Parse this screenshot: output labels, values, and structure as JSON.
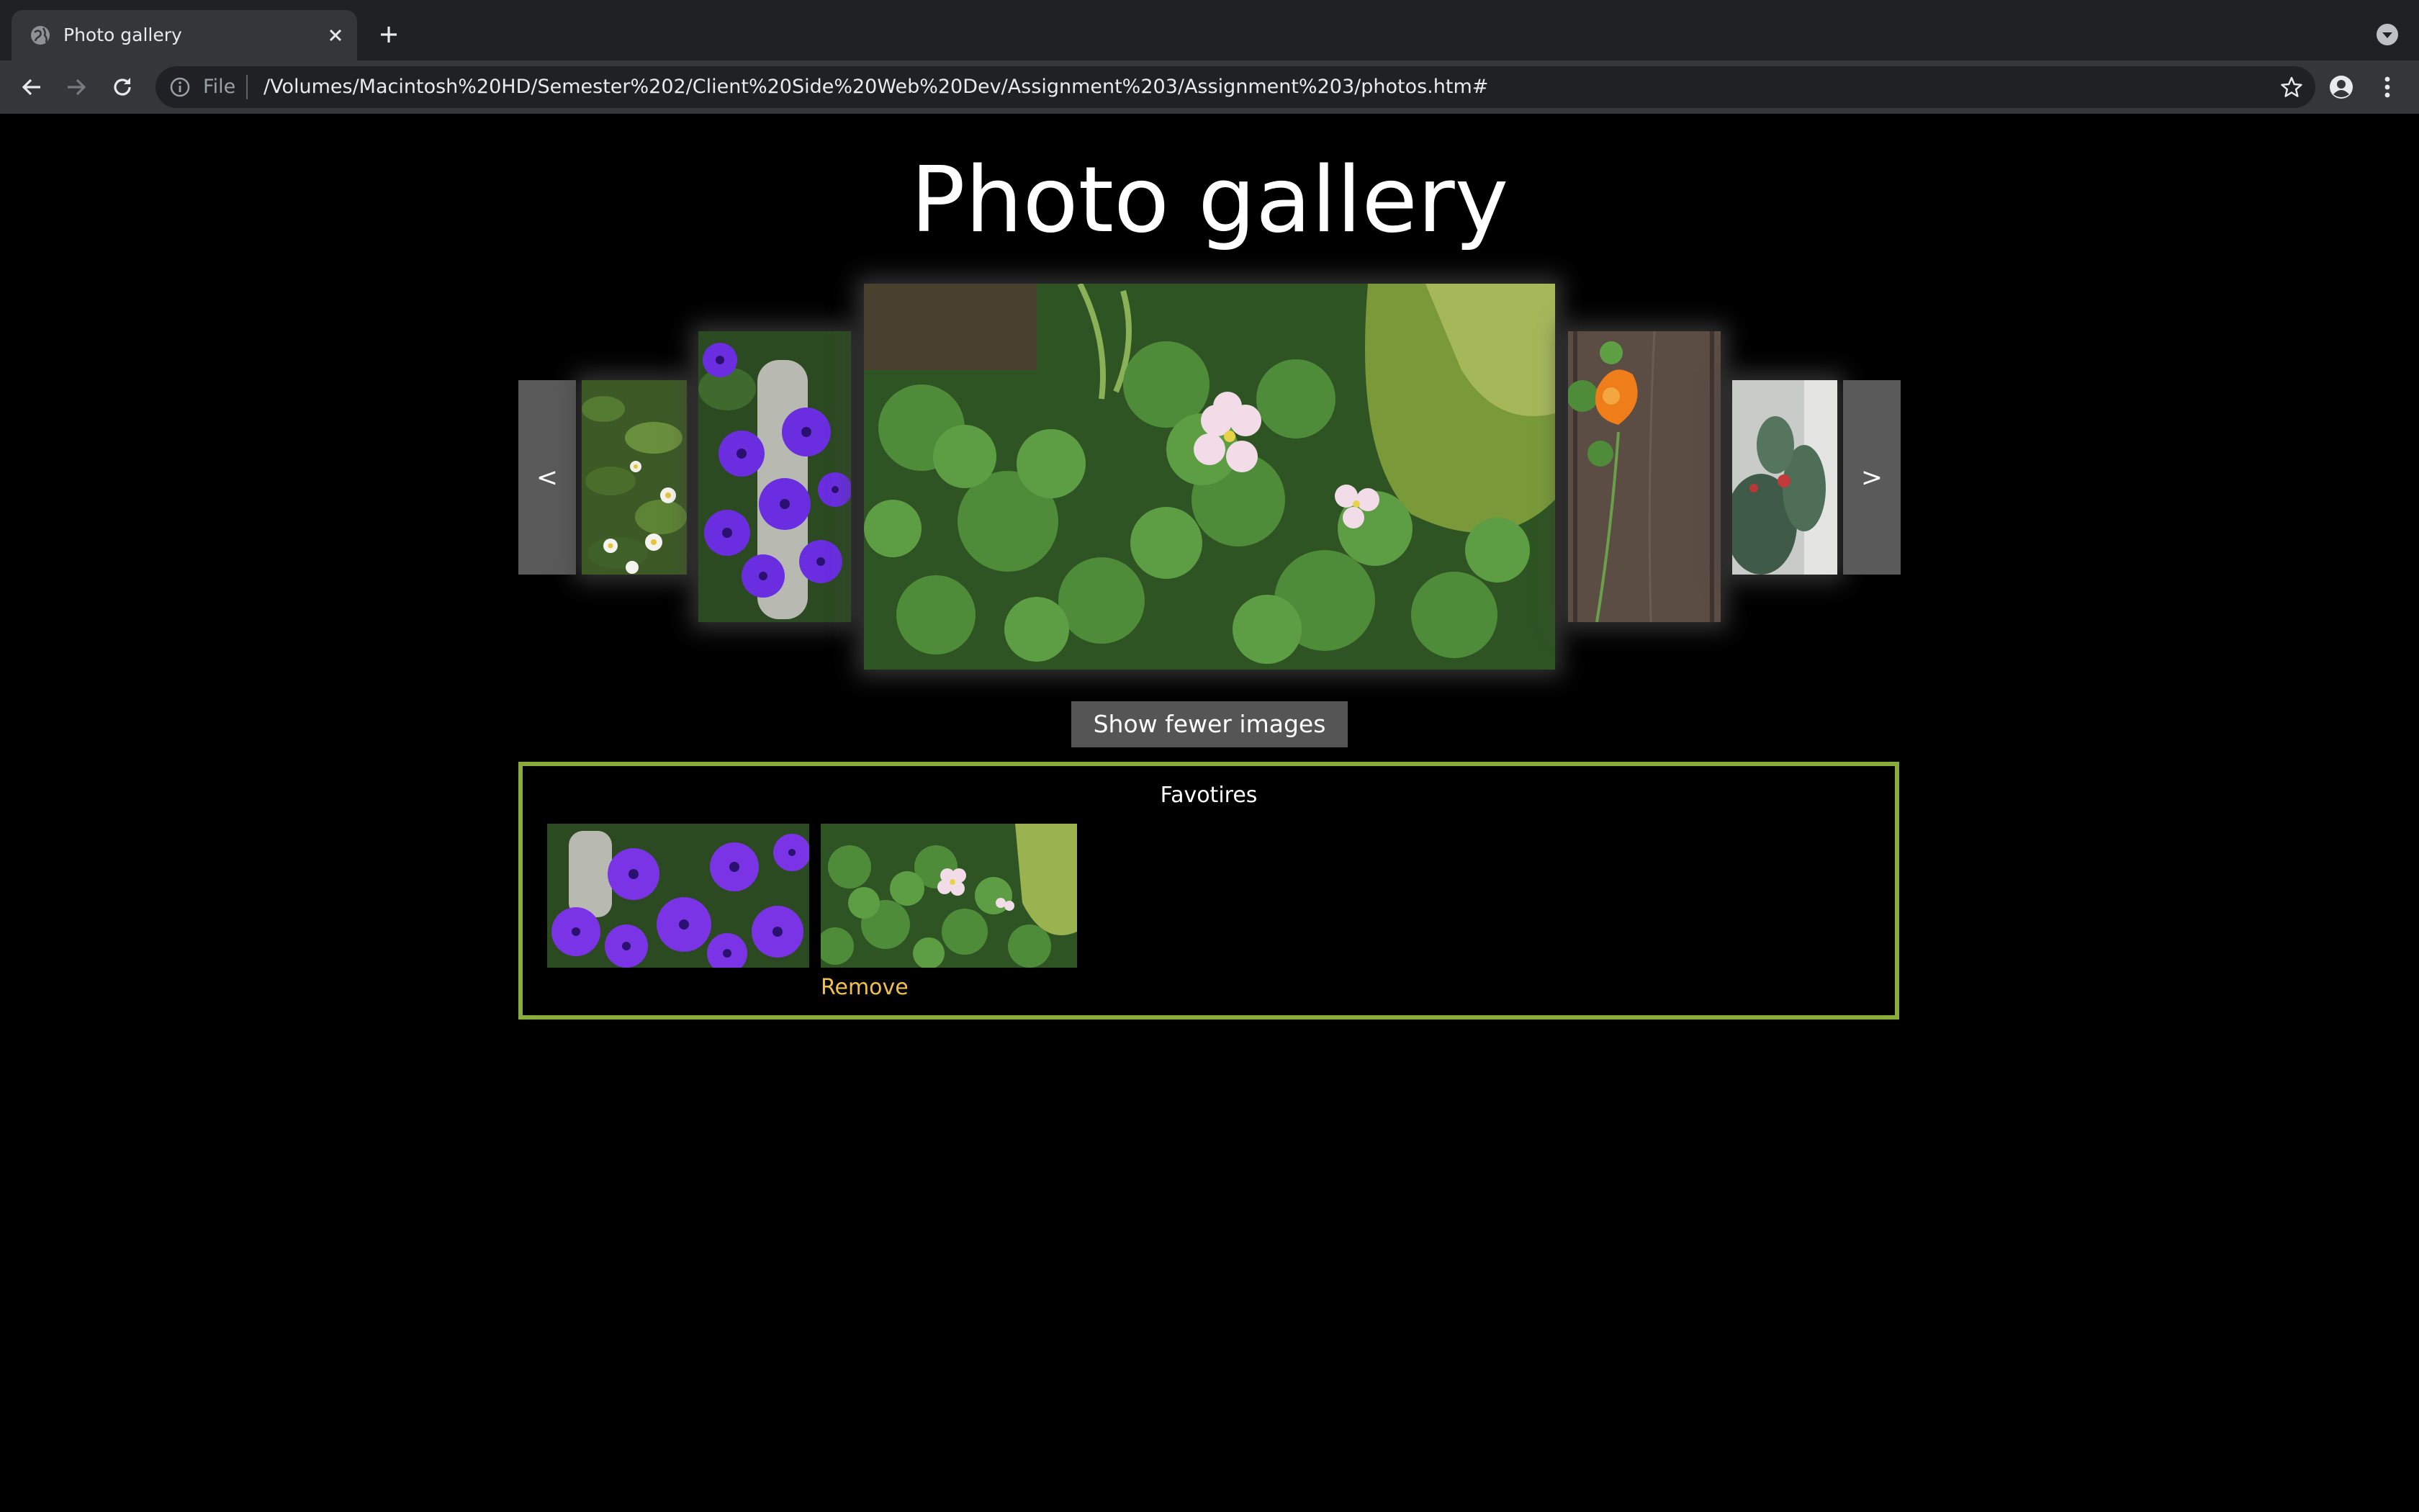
{
  "browser": {
    "tab_title": "Photo gallery",
    "scheme_chip": "File",
    "url": "/Volumes/Macintosh%20HD/Semester%202/Client%20Side%20Web%20Dev/Assignment%203/Assignment%203/photos.htm#",
    "icons": [
      "globe-icon",
      "close-icon",
      "plus-icon",
      "chevron-down-icon",
      "back-arrow-icon",
      "forward-arrow-icon",
      "reload-icon",
      "info-icon",
      "star-icon",
      "profile-icon",
      "kebab-menu-icon"
    ]
  },
  "page": {
    "title": "Photo gallery",
    "carousel": {
      "prev_label": "<",
      "next_label": ">",
      "images": [
        {
          "subject": "white daisies among leaves"
        },
        {
          "subject": "purple cineraria flowers"
        },
        {
          "subject": "clover with pink flowers (selected)"
        },
        {
          "subject": "orange nasturtium on wooden fence"
        },
        {
          "subject": "prickly pear cactus"
        }
      ]
    },
    "toggle_button": "Show fewer images",
    "favorites": {
      "heading": "Favotires",
      "remove_label": "Remove",
      "items": [
        {
          "subject": "purple cineraria flowers"
        },
        {
          "subject": "clover with pink flowers"
        }
      ]
    }
  },
  "colors": {
    "page_background": "#000000",
    "favorites_border": "#8aac3a",
    "remove_link": "#f0c04a",
    "carousel_button": "#5a5a5a",
    "toggle_button": "#555555"
  }
}
